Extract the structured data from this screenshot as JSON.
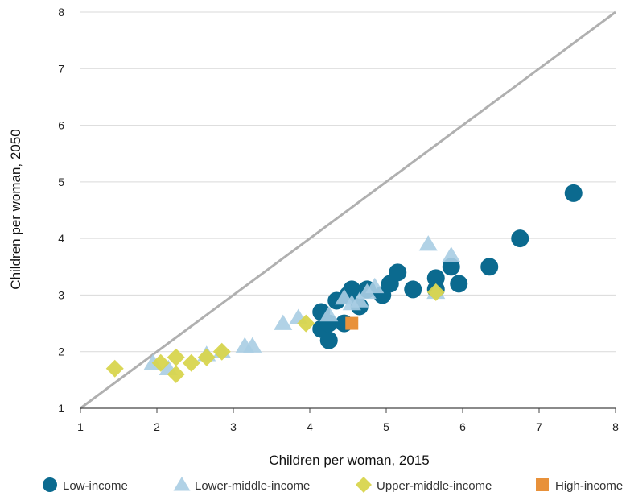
{
  "chart_data": {
    "type": "scatter",
    "title": "",
    "xlabel": "Children per woman, 2015",
    "ylabel": "Children per woman, 2050",
    "xlim": [
      1,
      8
    ],
    "ylim": [
      1,
      8
    ],
    "x_ticks": [
      "1",
      "2",
      "3",
      "4",
      "5",
      "6",
      "7",
      "8"
    ],
    "y_ticks": [
      "1",
      "2",
      "3",
      "4",
      "5",
      "6",
      "7",
      "8"
    ],
    "grid": "horizontal",
    "reference_line": {
      "from": [
        1,
        1
      ],
      "to": [
        8,
        8
      ],
      "color": "#b0b0b0"
    },
    "legend_position": "bottom",
    "series": [
      {
        "name": "Low-income",
        "marker": "circle",
        "color": "#0b6a8f",
        "points": [
          [
            4.15,
            2.7
          ],
          [
            4.15,
            2.4
          ],
          [
            4.25,
            2.2
          ],
          [
            4.25,
            2.5
          ],
          [
            4.35,
            2.9
          ],
          [
            4.45,
            2.5
          ],
          [
            4.5,
            3.0
          ],
          [
            4.55,
            3.1
          ],
          [
            4.65,
            2.8
          ],
          [
            4.75,
            3.1
          ],
          [
            4.95,
            3.0
          ],
          [
            5.05,
            3.2
          ],
          [
            5.15,
            3.4
          ],
          [
            5.35,
            3.1
          ],
          [
            5.65,
            3.3
          ],
          [
            5.65,
            3.1
          ],
          [
            5.85,
            3.5
          ],
          [
            5.95,
            3.2
          ],
          [
            6.35,
            3.5
          ],
          [
            6.75,
            4.0
          ],
          [
            7.45,
            4.8
          ]
        ]
      },
      {
        "name": "Lower-middle-income",
        "marker": "triangle",
        "color": "#a9cde3",
        "points": [
          [
            1.95,
            1.8
          ],
          [
            2.15,
            1.7
          ],
          [
            2.65,
            1.95
          ],
          [
            2.85,
            2.0
          ],
          [
            3.15,
            2.1
          ],
          [
            3.25,
            2.1
          ],
          [
            3.65,
            2.5
          ],
          [
            3.85,
            2.6
          ],
          [
            4.25,
            2.65
          ],
          [
            4.45,
            2.95
          ],
          [
            4.55,
            2.85
          ],
          [
            4.65,
            2.9
          ],
          [
            4.75,
            3.05
          ],
          [
            4.85,
            3.15
          ],
          [
            5.55,
            3.9
          ],
          [
            5.65,
            3.05
          ],
          [
            5.85,
            3.7
          ]
        ]
      },
      {
        "name": "Upper-middle-income",
        "marker": "diamond",
        "color": "#d8d54e",
        "points": [
          [
            1.45,
            1.7
          ],
          [
            2.05,
            1.8
          ],
          [
            2.25,
            1.9
          ],
          [
            2.25,
            1.6
          ],
          [
            2.45,
            1.8
          ],
          [
            2.65,
            1.9
          ],
          [
            2.85,
            2.0
          ],
          [
            3.95,
            2.5
          ],
          [
            5.65,
            3.05
          ]
        ]
      },
      {
        "name": "High-income",
        "marker": "square",
        "color": "#e8913a",
        "points": [
          [
            4.55,
            2.5
          ]
        ]
      }
    ]
  }
}
